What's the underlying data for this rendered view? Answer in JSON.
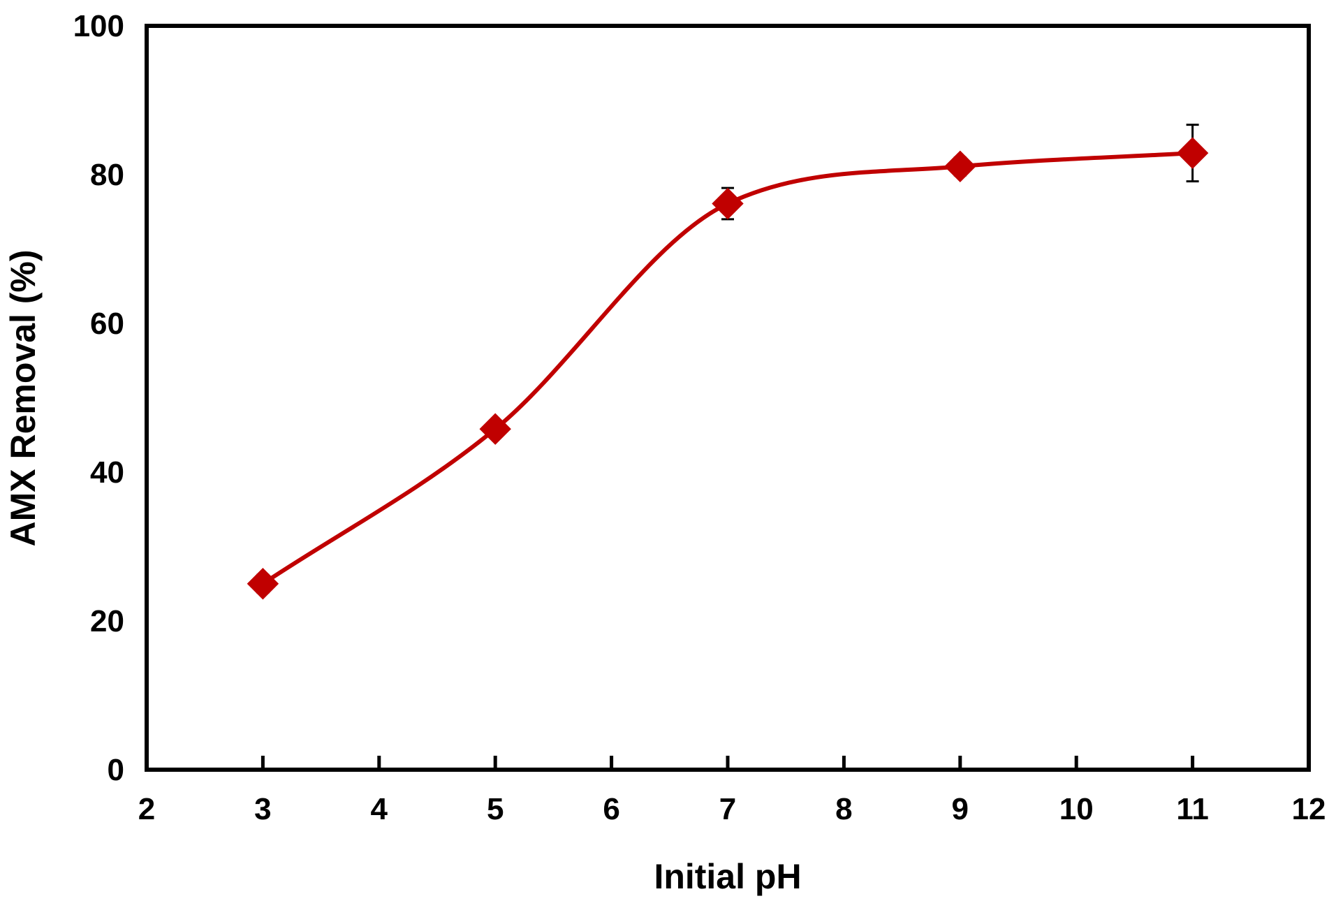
{
  "chart_data": {
    "type": "line",
    "title": "",
    "xlabel": "Initial pH",
    "ylabel": "AMX Removal (%)",
    "xlim": [
      2,
      12
    ],
    "ylim": [
      0,
      100
    ],
    "x_ticks": [
      2,
      3,
      4,
      5,
      6,
      7,
      8,
      9,
      10,
      11,
      12
    ],
    "y_ticks": [
      0,
      20,
      40,
      60,
      80,
      100
    ],
    "x_tick_labels": [
      "2",
      "3",
      "4",
      "5",
      "6",
      "7",
      "8",
      "9",
      "10",
      "11",
      "12"
    ],
    "y_tick_labels": [
      "0",
      "20",
      "40",
      "60",
      "80",
      "100"
    ],
    "grid": false,
    "legend": "none",
    "series": [
      {
        "x": [
          3,
          5,
          7,
          9,
          11
        ],
        "values": [
          25.0,
          45.8,
          76.1,
          81.1,
          82.9
        ],
        "error": [
          1.2,
          1.0,
          2.1,
          1.2,
          3.8
        ],
        "marker": "diamond",
        "color": "#c00000",
        "line": "smooth"
      }
    ]
  }
}
